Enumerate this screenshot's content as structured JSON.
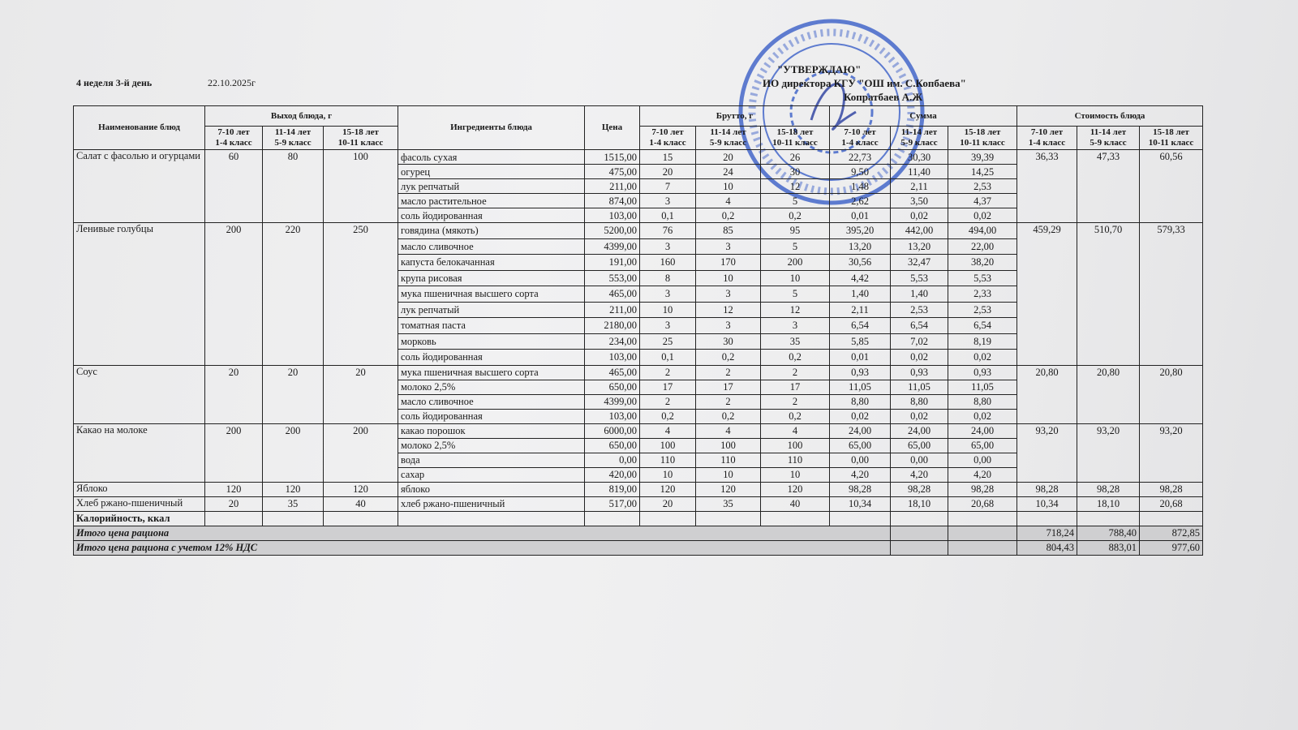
{
  "header": {
    "week_day": "4 неделя 3-й день",
    "date": "22.10.2025г"
  },
  "approval": {
    "line1": "\"УТВЕРЖДАЮ\"",
    "line2": "ИО директора КГУ \"ОШ им. С.Копбаева\"",
    "line3": "Копратбаев А.Ж"
  },
  "stamp": {
    "text": "АЛМАТЫ ҚАЛАСЫ БІЛІМ БАСҚАРМАСЫНЫҢ ЖАЛПЫ БІЛІМ БЕРЕТІН МЕКТЕП",
    "color": "#3a5fc8"
  },
  "columns": {
    "dish": "Наименование блюд",
    "yield": "Выход блюда, г",
    "ingredients": "Ингредиенты блюда",
    "price": "Цена",
    "brutto": "Брутто, г",
    "sum": "Сумма",
    "cost": "Стоимость блюда",
    "age_groups": [
      [
        "7-10 лет",
        "1-4 класс"
      ],
      [
        "11-14 лет",
        "5-9 класс"
      ],
      [
        "15-18 лет",
        "10-11 класс"
      ]
    ]
  },
  "dishes": [
    {
      "name": "Салат с фасолью и огурцами",
      "yields": [
        "60",
        "80",
        "100"
      ],
      "costs": [
        "36,33",
        "47,33",
        "60,56"
      ],
      "ingredients": [
        {
          "name": "фасоль сухая",
          "price": "1515,00",
          "brutto": [
            "15",
            "20",
            "26"
          ],
          "sum": [
            "22,73",
            "30,30",
            "39,39"
          ]
        },
        {
          "name": "огурец",
          "price": "475,00",
          "brutto": [
            "20",
            "24",
            "30"
          ],
          "sum": [
            "9,50",
            "11,40",
            "14,25"
          ]
        },
        {
          "name": "лук репчатый",
          "price": "211,00",
          "brutto": [
            "7",
            "10",
            "12"
          ],
          "sum": [
            "1,48",
            "2,11",
            "2,53"
          ]
        },
        {
          "name": "масло растительное",
          "price": "874,00",
          "brutto": [
            "3",
            "4",
            "5"
          ],
          "sum": [
            "2,62",
            "3,50",
            "4,37"
          ]
        },
        {
          "name": "соль йодированная",
          "price": "103,00",
          "brutto": [
            "0,1",
            "0,2",
            "0,2"
          ],
          "sum": [
            "0,01",
            "0,02",
            "0,02"
          ]
        }
      ]
    },
    {
      "name": "Ленивые голубцы",
      "yields": [
        "200",
        "220",
        "250"
      ],
      "costs": [
        "459,29",
        "510,70",
        "579,33"
      ],
      "ingredients": [
        {
          "name": "говядина (мякоть)",
          "price": "5200,00",
          "brutto": [
            "76",
            "85",
            "95"
          ],
          "sum": [
            "395,20",
            "442,00",
            "494,00"
          ]
        },
        {
          "name": "масло сливочное",
          "price": "4399,00",
          "brutto": [
            "3",
            "3",
            "5"
          ],
          "sum": [
            "13,20",
            "13,20",
            "22,00"
          ]
        },
        {
          "name": "капуста белокачанная",
          "price": "191,00",
          "brutto": [
            "160",
            "170",
            "200"
          ],
          "sum": [
            "30,56",
            "32,47",
            "38,20"
          ]
        },
        {
          "name": "крупа рисовая",
          "price": "553,00",
          "brutto": [
            "8",
            "10",
            "10"
          ],
          "sum": [
            "4,42",
            "5,53",
            "5,53"
          ]
        },
        {
          "name": "мука пшеничная высшего сорта",
          "price": "465,00",
          "brutto": [
            "3",
            "3",
            "5"
          ],
          "sum": [
            "1,40",
            "1,40",
            "2,33"
          ]
        },
        {
          "name": "лук репчатый",
          "price": "211,00",
          "brutto": [
            "10",
            "12",
            "12"
          ],
          "sum": [
            "2,11",
            "2,53",
            "2,53"
          ]
        },
        {
          "name": "томатная паста",
          "price": "2180,00",
          "brutto": [
            "3",
            "3",
            "3"
          ],
          "sum": [
            "6,54",
            "6,54",
            "6,54"
          ]
        },
        {
          "name": "морковь",
          "price": "234,00",
          "brutto": [
            "25",
            "30",
            "35"
          ],
          "sum": [
            "5,85",
            "7,02",
            "8,19"
          ]
        },
        {
          "name": "соль йодированная",
          "price": "103,00",
          "brutto": [
            "0,1",
            "0,2",
            "0,2"
          ],
          "sum": [
            "0,01",
            "0,02",
            "0,02"
          ]
        }
      ]
    },
    {
      "name": "Соус",
      "yields": [
        "20",
        "20",
        "20"
      ],
      "costs": [
        "20,80",
        "20,80",
        "20,80"
      ],
      "ingredients": [
        {
          "name": "мука пшеничная высшего сорта",
          "price": "465,00",
          "brutto": [
            "2",
            "2",
            "2"
          ],
          "sum": [
            "0,93",
            "0,93",
            "0,93"
          ]
        },
        {
          "name": "молоко 2,5%",
          "price": "650,00",
          "brutto": [
            "17",
            "17",
            "17"
          ],
          "sum": [
            "11,05",
            "11,05",
            "11,05"
          ]
        },
        {
          "name": "масло сливочное",
          "price": "4399,00",
          "brutto": [
            "2",
            "2",
            "2"
          ],
          "sum": [
            "8,80",
            "8,80",
            "8,80"
          ]
        },
        {
          "name": "соль йодированная",
          "price": "103,00",
          "brutto": [
            "0,2",
            "0,2",
            "0,2"
          ],
          "sum": [
            "0,02",
            "0,02",
            "0,02"
          ]
        }
      ]
    },
    {
      "name": "Какао на молоке",
      "yields": [
        "200",
        "200",
        "200"
      ],
      "costs": [
        "93,20",
        "93,20",
        "93,20"
      ],
      "ingredients": [
        {
          "name": "какао порошок",
          "price": "6000,00",
          "brutto": [
            "4",
            "4",
            "4"
          ],
          "sum": [
            "24,00",
            "24,00",
            "24,00"
          ]
        },
        {
          "name": "молоко 2,5%",
          "price": "650,00",
          "brutto": [
            "100",
            "100",
            "100"
          ],
          "sum": [
            "65,00",
            "65,00",
            "65,00"
          ]
        },
        {
          "name": "вода",
          "price": "0,00",
          "brutto": [
            "110",
            "110",
            "110"
          ],
          "sum": [
            "0,00",
            "0,00",
            "0,00"
          ]
        },
        {
          "name": "сахар",
          "price": "420,00",
          "brutto": [
            "10",
            "10",
            "10"
          ],
          "sum": [
            "4,20",
            "4,20",
            "4,20"
          ]
        }
      ]
    },
    {
      "name": "Яблоко",
      "yields": [
        "120",
        "120",
        "120"
      ],
      "costs": [
        "98,28",
        "98,28",
        "98,28"
      ],
      "ingredients": [
        {
          "name": "яблоко",
          "price": "819,00",
          "brutto": [
            "120",
            "120",
            "120"
          ],
          "sum": [
            "98,28",
            "98,28",
            "98,28"
          ]
        }
      ]
    },
    {
      "name": "Хлеб ржано-пшеничный",
      "yields": [
        "20",
        "35",
        "40"
      ],
      "costs": [
        "10,34",
        "18,10",
        "20,68"
      ],
      "ingredients": [
        {
          "name": "хлеб ржано-пшеничный",
          "price": "517,00",
          "brutto": [
            "20",
            "35",
            "40"
          ],
          "sum": [
            "10,34",
            "18,10",
            "20,68"
          ]
        }
      ]
    }
  ],
  "calories_label": "Калорийность, ккал",
  "totals": [
    {
      "label": "Итого цена рациона",
      "values": [
        "718,24",
        "788,40",
        "872,85"
      ]
    },
    {
      "label": "Итого цена рациона с учетом 12% НДС",
      "values": [
        "804,43",
        "883,01",
        "977,60"
      ]
    }
  ]
}
